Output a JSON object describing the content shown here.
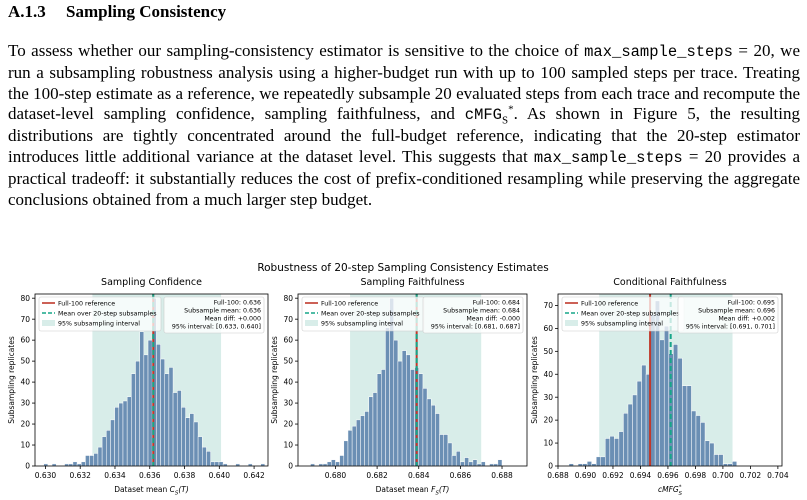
{
  "section": {
    "number": "A.1.3",
    "title": "Sampling Consistency"
  },
  "paragraph": {
    "p1": "To assess whether our sampling-consistency estimator is sensitive to the choice of ",
    "code1": "max_sample_steps",
    "p2": " = 20, we run a subsampling robustness analysis using a higher-budget run with up to 100 sampled steps per trace. Treating the 100-step estimate as a reference, we repeatedly subsample 20 evaluated steps from each trace and recompute the dataset-level sampling confidence, sampling faithfulness, and ",
    "code2": "cMFG",
    "sub": "S",
    "sup": "*",
    "p3": ". As shown in Figure 5, the resulting distributions are tightly concentrated around the full-budget reference, indicating that the 20-step estimator introduces little additional variance at the dataset level. This suggests that ",
    "code3": "max_sample_steps",
    "p4": " = 20 provides a practical tradeoff: it substantially reduces the cost of prefix-conditioned resampling while preserving the aggregate conclusions obtained from a much larger step budget."
  },
  "figure": {
    "suptitle": "Robustness of 20-step Sampling Consistency Estimates",
    "colors": {
      "bar": "#6b8fb4",
      "bar_edge": "#ffffff",
      "band": "#d8ede9",
      "reference": "#c0392b",
      "mean": "#17a589"
    },
    "legend": {
      "reference": "Full-100 reference",
      "mean": "Mean over 20-step subsamples",
      "band": "95% subsampling interval"
    }
  },
  "chart_data": [
    {
      "type": "bar",
      "title": "Sampling Confidence",
      "xlabel": "Dataset mean C_S(T)",
      "xlabel_main": "Dataset mean ",
      "xlabel_var": "C",
      "xlabel_sub": "S",
      "xlabel_tail": "(T)",
      "ylabel": "Subsampling replicates",
      "xlim": [
        0.6294,
        0.6428
      ],
      "ylim": [
        0,
        82
      ],
      "xticks": [
        "0.630",
        "0.632",
        "0.634",
        "0.636",
        "0.638",
        "0.640",
        "0.642"
      ],
      "yticks": [
        "0",
        "10",
        "20",
        "30",
        "40",
        "50",
        "60",
        "70",
        "80"
      ],
      "bin_start": 0.6299,
      "bin_width": 0.00024,
      "counts": [
        1,
        0,
        1,
        0,
        0,
        1,
        1,
        2,
        1,
        2,
        5,
        5,
        6,
        9,
        14,
        17,
        22,
        28,
        30,
        31,
        33,
        44,
        50,
        64,
        53,
        60,
        80,
        58,
        51,
        44,
        47,
        35,
        36,
        28,
        23,
        25,
        21,
        14,
        9,
        7,
        2,
        2,
        2,
        1,
        0,
        0,
        1,
        0,
        0,
        1,
        0,
        0,
        1
      ],
      "reference": 0.6362,
      "mean": 0.6362,
      "interval": [
        0.6327,
        0.6401
      ],
      "stats": [
        "Full-100: 0.636",
        "Subsample mean: 0.636",
        "Mean diff: +0.000",
        "95% interval: [0.633, 0.640]"
      ]
    },
    {
      "type": "bar",
      "title": "Sampling Faithfulness",
      "xlabel": "Dataset mean F_S(T)",
      "xlabel_main": "Dataset mean ",
      "xlabel_var": "F",
      "xlabel_sub": "S",
      "xlabel_tail": "(T)",
      "ylabel": "Subsampling replicates",
      "xlim": [
        0.6782,
        0.6892
      ],
      "ylim": [
        0,
        82
      ],
      "xticks": [
        "0.680",
        "0.682",
        "0.684",
        "0.686",
        "0.688"
      ],
      "yticks": [
        "0",
        "10",
        "20",
        "30",
        "40",
        "50",
        "60",
        "70",
        "80"
      ],
      "bin_start": 0.6788,
      "bin_width": 0.0002,
      "counts": [
        1,
        0,
        1,
        1,
        2,
        3,
        2,
        5,
        12,
        17,
        19,
        22,
        24,
        26,
        33,
        35,
        44,
        46,
        66,
        80,
        60,
        50,
        55,
        53,
        46,
        47,
        44,
        37,
        32,
        29,
        25,
        15,
        15,
        11,
        5,
        7,
        2,
        4,
        2,
        3,
        1,
        2,
        0,
        1,
        1,
        3
      ],
      "reference": 0.6839,
      "mean": 0.6839,
      "interval": [
        0.6807,
        0.687
      ],
      "stats": [
        "Full-100: 0.684",
        "Subsample mean: 0.684",
        "Mean diff: -0.000",
        "95% interval: [0.681, 0.687]"
      ]
    },
    {
      "type": "bar",
      "title": "Conditional Faithfulness",
      "xlabel": "cMFG_S^*",
      "xlabel_main": "",
      "xlabel_var": "cMFG",
      "xlabel_sub": "S",
      "xlabel_sup": "*",
      "xlabel_tail": "",
      "ylabel": "Subsampling replicates",
      "xlim": [
        0.688,
        0.7043
      ],
      "ylim": [
        0,
        75
      ],
      "xticks": [
        "0.688",
        "0.690",
        "0.692",
        "0.694",
        "0.696",
        "0.698",
        "0.700",
        "0.702",
        "0.704"
      ],
      "yticks": [
        "0",
        "10",
        "20",
        "30",
        "40",
        "50",
        "60",
        "70"
      ],
      "bin_start": 0.6888,
      "bin_width": 0.00033,
      "counts": [
        1,
        0,
        1,
        1,
        2,
        1,
        4,
        4,
        12,
        13,
        12,
        15,
        23,
        27,
        31,
        37,
        44,
        40,
        66,
        72,
        55,
        61,
        49,
        53,
        47,
        35,
        35,
        24,
        22,
        19,
        11,
        10,
        5,
        5,
        1,
        1,
        2
      ],
      "reference": 0.6947,
      "mean": 0.6962,
      "interval": [
        0.691,
        0.7007
      ],
      "stats": [
        "Full-100: 0.695",
        "Subsample mean: 0.696",
        "Mean diff: +0.002",
        "95% interval: [0.691, 0.701]"
      ]
    }
  ]
}
